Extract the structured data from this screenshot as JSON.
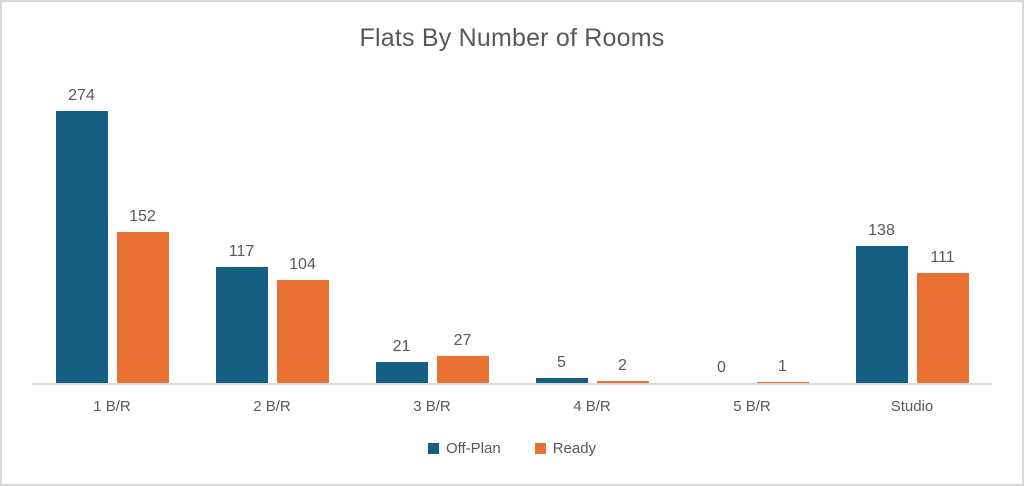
{
  "chart_data": {
    "type": "bar",
    "title": "Flats By Number of Rooms",
    "categories": [
      "1 B/R",
      "2 B/R",
      "3 B/R",
      "4 B/R",
      "5 B/R",
      "Studio"
    ],
    "series": [
      {
        "name": "Off-Plan",
        "color": "#156082",
        "values": [
          274,
          117,
          21,
          5,
          0,
          138
        ]
      },
      {
        "name": "Ready",
        "color": "#E97132",
        "values": [
          152,
          104,
          27,
          2,
          1,
          111
        ]
      }
    ],
    "xlabel": "",
    "ylabel": "",
    "ylim": [
      0,
      280
    ],
    "grid": false,
    "axis_visible": "x-only",
    "value_labels": true,
    "legend_position": "bottom"
  },
  "colors": {
    "text": "#595959",
    "axis_line": "#D9D9D9",
    "border": "#D9D9D9",
    "background": "#FFFFFF"
  }
}
